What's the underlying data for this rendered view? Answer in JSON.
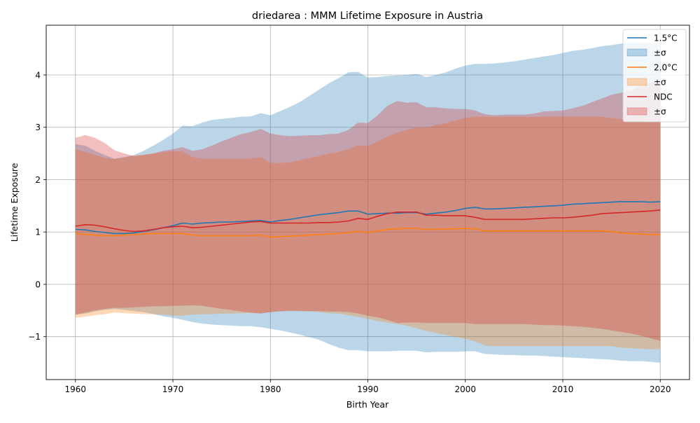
{
  "chart_data": {
    "type": "line",
    "title": "driedarea : MMM Lifetime Exposure in Austria",
    "xlabel": "Birth Year",
    "ylabel": "Lifetime Exposure",
    "xlim": [
      1957.0,
      2023.0
    ],
    "ylim": [
      -1.82,
      4.95
    ],
    "xticks": [
      1960,
      1970,
      1980,
      1990,
      2000,
      2010,
      2020
    ],
    "yticks": [
      -1,
      0,
      1,
      2,
      3,
      4
    ],
    "ytick_labels": [
      "−1",
      "0",
      "1",
      "2",
      "3",
      "4"
    ],
    "grid": true,
    "legend_position": "top-right",
    "x": [
      1960,
      1961,
      1962,
      1963,
      1964,
      1965,
      1966,
      1967,
      1968,
      1969,
      1970,
      1971,
      1972,
      1973,
      1974,
      1975,
      1976,
      1977,
      1978,
      1979,
      1980,
      1981,
      1982,
      1983,
      1984,
      1985,
      1986,
      1987,
      1988,
      1989,
      1990,
      1991,
      1992,
      1993,
      1994,
      1995,
      1996,
      1997,
      1998,
      1999,
      2000,
      2001,
      2002,
      2003,
      2004,
      2005,
      2006,
      2007,
      2008,
      2009,
      2010,
      2011,
      2012,
      2013,
      2014,
      2015,
      2016,
      2017,
      2018,
      2019,
      2020
    ],
    "series": [
      {
        "name": "1.5°C",
        "band_label": "±σ",
        "color": "#1f77b4",
        "mean": [
          1.05,
          1.04,
          1.01,
          0.99,
          0.97,
          0.97,
          0.98,
          1.01,
          1.04,
          1.08,
          1.12,
          1.17,
          1.15,
          1.17,
          1.18,
          1.19,
          1.19,
          1.2,
          1.21,
          1.22,
          1.19,
          1.22,
          1.24,
          1.27,
          1.3,
          1.33,
          1.35,
          1.37,
          1.4,
          1.4,
          1.34,
          1.35,
          1.36,
          1.36,
          1.37,
          1.37,
          1.34,
          1.36,
          1.38,
          1.41,
          1.45,
          1.47,
          1.44,
          1.44,
          1.45,
          1.46,
          1.47,
          1.48,
          1.49,
          1.5,
          1.51,
          1.53,
          1.54,
          1.55,
          1.56,
          1.57,
          1.58,
          1.58,
          1.58,
          1.57,
          1.58
        ],
        "upper": [
          2.68,
          2.65,
          2.55,
          2.47,
          2.4,
          2.43,
          2.47,
          2.55,
          2.65,
          2.76,
          2.88,
          3.03,
          3.02,
          3.09,
          3.14,
          3.16,
          3.18,
          3.2,
          3.21,
          3.27,
          3.23,
          3.31,
          3.39,
          3.48,
          3.6,
          3.72,
          3.84,
          3.94,
          4.05,
          4.06,
          3.95,
          3.96,
          3.98,
          3.99,
          4.0,
          4.02,
          3.96,
          4.0,
          4.05,
          4.12,
          4.18,
          4.21,
          4.21,
          4.22,
          4.24,
          4.26,
          4.29,
          4.32,
          4.35,
          4.38,
          4.42,
          4.46,
          4.48,
          4.51,
          4.55,
          4.57,
          4.6,
          4.62,
          4.62,
          4.6,
          4.62
        ],
        "lower": [
          -0.58,
          -0.56,
          -0.52,
          -0.49,
          -0.47,
          -0.49,
          -0.51,
          -0.53,
          -0.57,
          -0.61,
          -0.64,
          -0.68,
          -0.72,
          -0.75,
          -0.77,
          -0.78,
          -0.79,
          -0.8,
          -0.8,
          -0.82,
          -0.85,
          -0.88,
          -0.92,
          -0.96,
          -1.01,
          -1.06,
          -1.14,
          -1.21,
          -1.26,
          -1.26,
          -1.28,
          -1.28,
          -1.28,
          -1.27,
          -1.27,
          -1.27,
          -1.3,
          -1.29,
          -1.29,
          -1.29,
          -1.28,
          -1.28,
          -1.33,
          -1.34,
          -1.35,
          -1.35,
          -1.36,
          -1.36,
          -1.37,
          -1.38,
          -1.39,
          -1.4,
          -1.41,
          -1.42,
          -1.43,
          -1.44,
          -1.46,
          -1.47,
          -1.47,
          -1.48,
          -1.5
        ]
      },
      {
        "name": "2.0°C",
        "band_label": "±σ",
        "color": "#ff7f0e",
        "mean": [
          0.97,
          0.95,
          0.94,
          0.93,
          0.93,
          0.94,
          0.95,
          0.96,
          0.97,
          0.97,
          0.97,
          0.97,
          0.94,
          0.93,
          0.93,
          0.93,
          0.93,
          0.93,
          0.93,
          0.94,
          0.9,
          0.91,
          0.92,
          0.93,
          0.94,
          0.95,
          0.96,
          0.97,
          0.99,
          1.01,
          0.99,
          1.02,
          1.05,
          1.06,
          1.07,
          1.07,
          1.05,
          1.05,
          1.06,
          1.06,
          1.07,
          1.06,
          1.02,
          1.02,
          1.02,
          1.02,
          1.02,
          1.02,
          1.02,
          1.02,
          1.02,
          1.02,
          1.02,
          1.02,
          1.02,
          1.01,
          0.98,
          0.97,
          0.96,
          0.95,
          0.95
        ],
        "upper": [
          2.58,
          2.53,
          2.47,
          2.42,
          2.39,
          2.42,
          2.46,
          2.48,
          2.5,
          2.53,
          2.54,
          2.54,
          2.43,
          2.4,
          2.4,
          2.4,
          2.4,
          2.4,
          2.4,
          2.43,
          2.32,
          2.32,
          2.33,
          2.37,
          2.41,
          2.45,
          2.5,
          2.53,
          2.58,
          2.66,
          2.64,
          2.73,
          2.82,
          2.9,
          2.95,
          3.0,
          2.99,
          3.05,
          3.08,
          3.13,
          3.18,
          3.2,
          3.2,
          3.2,
          3.2,
          3.2,
          3.2,
          3.2,
          3.2,
          3.2,
          3.2,
          3.2,
          3.2,
          3.2,
          3.2,
          3.18,
          3.15,
          3.14,
          3.12,
          3.1,
          3.1
        ],
        "lower": [
          -0.64,
          -0.62,
          -0.59,
          -0.57,
          -0.54,
          -0.55,
          -0.56,
          -0.57,
          -0.57,
          -0.58,
          -0.6,
          -0.6,
          -0.58,
          -0.57,
          -0.57,
          -0.56,
          -0.56,
          -0.55,
          -0.55,
          -0.55,
          -0.53,
          -0.51,
          -0.5,
          -0.51,
          -0.52,
          -0.53,
          -0.55,
          -0.56,
          -0.59,
          -0.62,
          -0.66,
          -0.7,
          -0.73,
          -0.76,
          -0.79,
          -0.84,
          -0.89,
          -0.93,
          -0.97,
          -1.0,
          -1.04,
          -1.09,
          -1.17,
          -1.18,
          -1.18,
          -1.18,
          -1.18,
          -1.18,
          -1.18,
          -1.18,
          -1.18,
          -1.18,
          -1.18,
          -1.18,
          -1.18,
          -1.18,
          -1.21,
          -1.22,
          -1.23,
          -1.24,
          -1.24
        ]
      },
      {
        "name": "NDC",
        "band_label": "±σ",
        "color": "#d62728",
        "mean": [
          1.11,
          1.14,
          1.13,
          1.1,
          1.06,
          1.03,
          1.01,
          1.02,
          1.05,
          1.08,
          1.1,
          1.11,
          1.08,
          1.09,
          1.11,
          1.13,
          1.15,
          1.17,
          1.19,
          1.2,
          1.17,
          1.17,
          1.17,
          1.17,
          1.17,
          1.18,
          1.18,
          1.19,
          1.21,
          1.26,
          1.24,
          1.3,
          1.35,
          1.38,
          1.38,
          1.38,
          1.32,
          1.32,
          1.31,
          1.31,
          1.31,
          1.28,
          1.24,
          1.24,
          1.24,
          1.24,
          1.24,
          1.25,
          1.26,
          1.27,
          1.27,
          1.28,
          1.3,
          1.32,
          1.35,
          1.36,
          1.37,
          1.38,
          1.39,
          1.4,
          1.42
        ],
        "upper": [
          2.8,
          2.85,
          2.8,
          2.7,
          2.56,
          2.5,
          2.45,
          2.47,
          2.5,
          2.55,
          2.58,
          2.62,
          2.55,
          2.58,
          2.65,
          2.73,
          2.8,
          2.87,
          2.91,
          2.97,
          2.88,
          2.85,
          2.83,
          2.84,
          2.85,
          2.85,
          2.87,
          2.88,
          2.95,
          3.09,
          3.08,
          3.23,
          3.41,
          3.5,
          3.47,
          3.48,
          3.38,
          3.38,
          3.36,
          3.35,
          3.35,
          3.32,
          3.25,
          3.23,
          3.24,
          3.24,
          3.24,
          3.26,
          3.3,
          3.31,
          3.32,
          3.36,
          3.41,
          3.48,
          3.55,
          3.62,
          3.66,
          3.7,
          3.79,
          3.85,
          3.9
        ],
        "lower": [
          -0.58,
          -0.54,
          -0.5,
          -0.47,
          -0.45,
          -0.45,
          -0.44,
          -0.43,
          -0.42,
          -0.42,
          -0.41,
          -0.41,
          -0.4,
          -0.41,
          -0.44,
          -0.47,
          -0.49,
          -0.52,
          -0.54,
          -0.56,
          -0.53,
          -0.52,
          -0.51,
          -0.51,
          -0.51,
          -0.51,
          -0.52,
          -0.52,
          -0.53,
          -0.56,
          -0.6,
          -0.63,
          -0.68,
          -0.74,
          -0.73,
          -0.73,
          -0.74,
          -0.74,
          -0.74,
          -0.74,
          -0.74,
          -0.76,
          -0.76,
          -0.76,
          -0.76,
          -0.76,
          -0.76,
          -0.77,
          -0.78,
          -0.78,
          -0.79,
          -0.8,
          -0.81,
          -0.83,
          -0.85,
          -0.88,
          -0.91,
          -0.94,
          -0.98,
          -1.03,
          -1.08
        ]
      }
    ]
  }
}
